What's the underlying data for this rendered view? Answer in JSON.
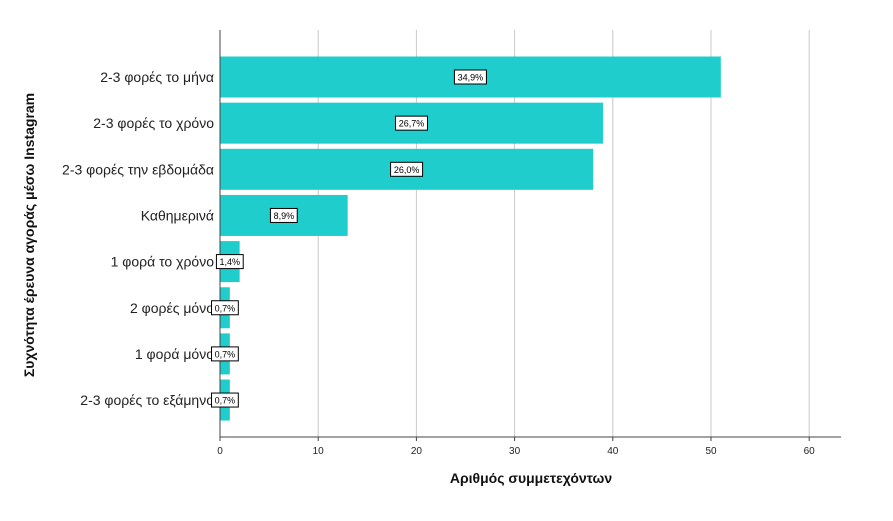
{
  "chart_data": {
    "type": "bar",
    "orientation": "horizontal",
    "categories": [
      "2-3 φορές το μήνα",
      "2-3 φορές το χρόνο",
      "2-3 φορές την εβδομάδα",
      "Καθημερινά",
      "1 φορά το χρόνο",
      "2 φορές μόνο",
      "1 φορά μόνο",
      "2-3 φορές το εξάμηνο"
    ],
    "values": [
      51,
      39,
      38,
      13,
      2,
      1,
      1,
      1
    ],
    "data_labels": [
      "34,9%",
      "26,7%",
      "26,0%",
      "8,9%",
      "1,4%",
      "0,7%",
      "0,7%",
      "0,7%"
    ],
    "xlabel": "Αριθμός συμμετεχόντων",
    "ylabel": "Συχνότητα έρευνα αγοράς μέσω Instagram",
    "xlim": [
      0,
      63
    ],
    "xticks": [
      0,
      10,
      20,
      30,
      40,
      50,
      60
    ],
    "grid": true,
    "bar_color": "#1fcdcd"
  }
}
